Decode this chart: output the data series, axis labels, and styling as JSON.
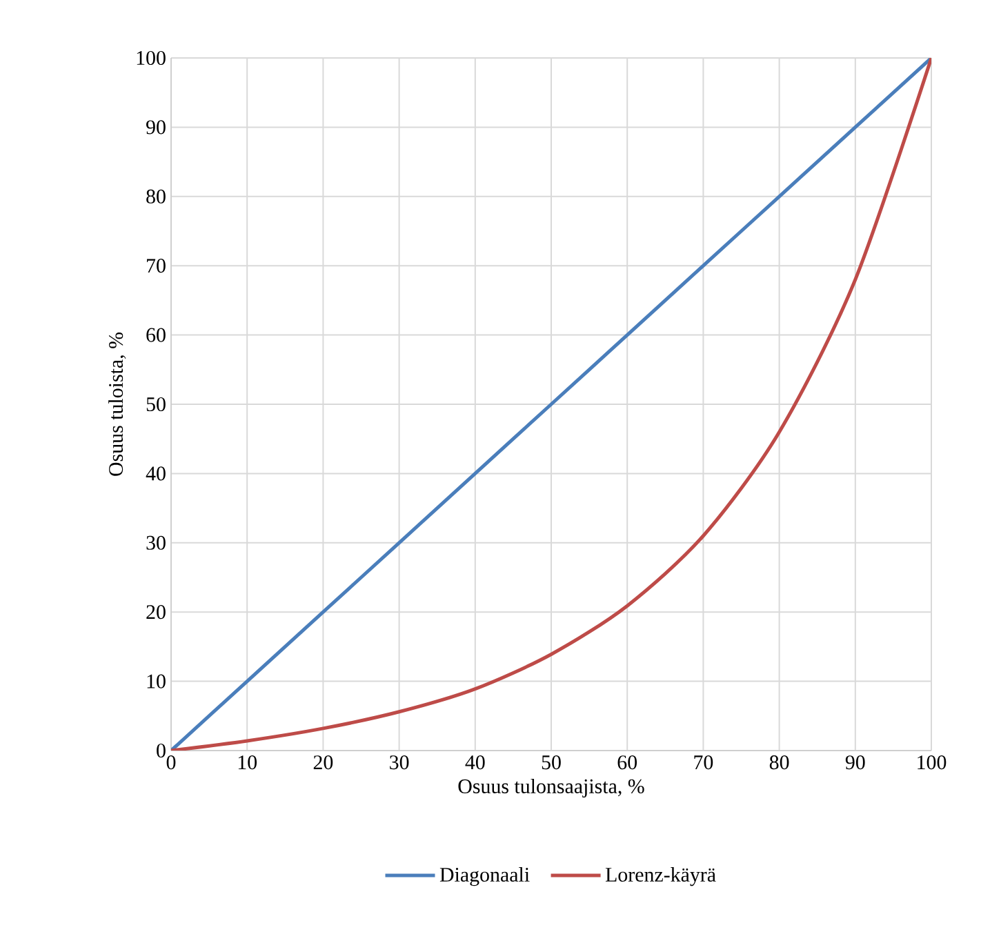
{
  "chart_data": {
    "type": "line",
    "xlabel": "Osuus tulonsaajista, %",
    "ylabel": "Osuus tuloista, %",
    "x": [
      0,
      10,
      20,
      30,
      40,
      50,
      60,
      70,
      80,
      90,
      100
    ],
    "series": [
      {
        "name": "Diagonaali",
        "color": "#4a7ebb",
        "values": [
          0,
          10,
          20,
          30,
          40,
          50,
          60,
          70,
          80,
          90,
          100
        ]
      },
      {
        "name": "Lorenz-käyrä",
        "color": "#be4b48",
        "values": [
          0,
          1.4,
          3.2,
          5.6,
          8.9,
          13.9,
          20.9,
          31,
          46,
          68,
          100
        ]
      }
    ],
    "xlim": [
      0,
      100
    ],
    "ylim": [
      0,
      100
    ],
    "xticks": [
      0,
      10,
      20,
      30,
      40,
      50,
      60,
      70,
      80,
      90,
      100
    ],
    "yticks": [
      0,
      10,
      20,
      30,
      40,
      50,
      60,
      70,
      80,
      90,
      100
    ],
    "grid": true,
    "legend": "bottom",
    "marker": "none",
    "line_style": "solid"
  }
}
